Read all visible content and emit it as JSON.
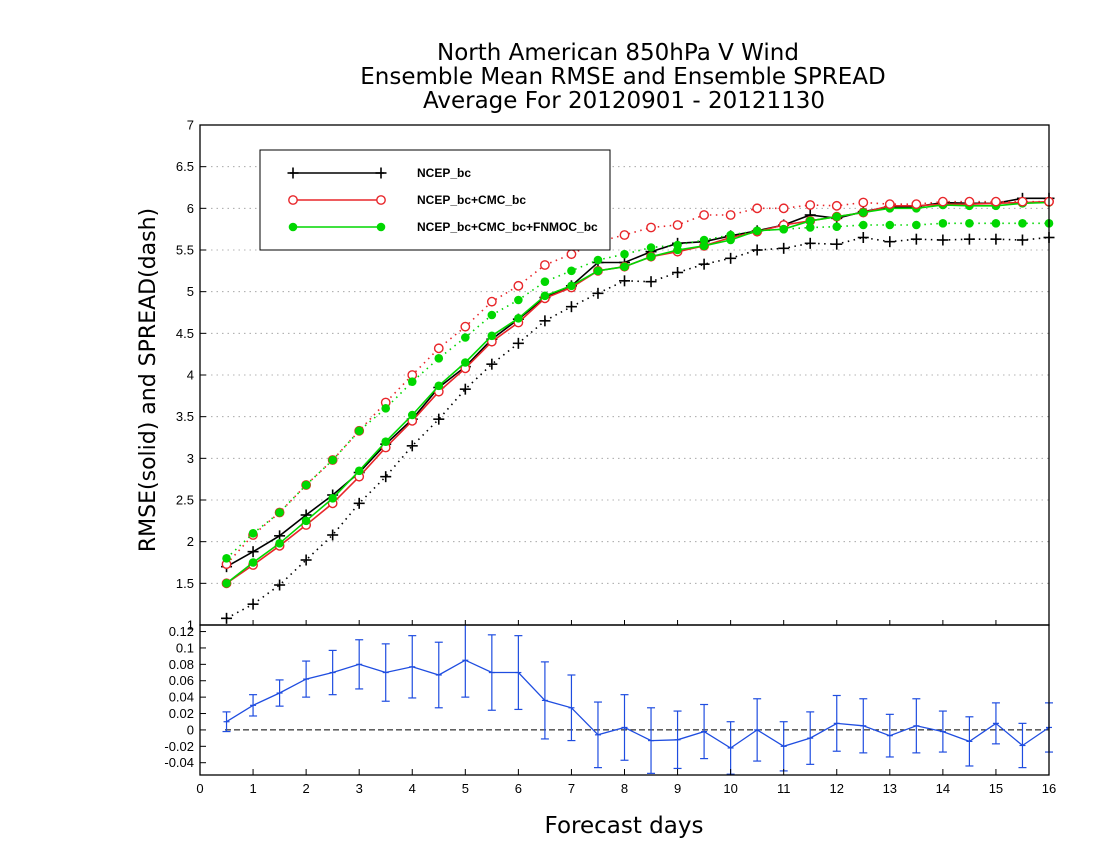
{
  "chart_data": {
    "title": [
      "North American 850hPa V Wind",
      "Ensemble Mean RMSE and Ensemble SPREAD",
      "Average For 20120901 - 20121130"
    ],
    "xlabel": "Forecast days",
    "ylabel": "RMSE(solid) and SPREAD(dash)",
    "colors": {
      "ncep": "#000000",
      "cmc": "#e8262a",
      "fnmoc": "#00d700",
      "diff": "#1f4de0"
    },
    "top": {
      "type": "line",
      "xlim": [
        0,
        16
      ],
      "ylim": [
        1,
        7
      ],
      "yticks": [
        "1",
        "1.5",
        "2",
        "2.5",
        "3",
        "3.5",
        "4",
        "4.5",
        "5",
        "5.5",
        "6",
        "6.5",
        "7"
      ],
      "grid": true,
      "legend_position": "top-left",
      "x": [
        0.5,
        1,
        1.5,
        2,
        2.5,
        3,
        3.5,
        4,
        4.5,
        5,
        5.5,
        6,
        6.5,
        7,
        7.5,
        8,
        8.5,
        9,
        9.5,
        10,
        10.5,
        11,
        11.5,
        12,
        12.5,
        13,
        13.5,
        14,
        14.5,
        15,
        15.5,
        16
      ],
      "series": [
        {
          "name": "NCEP_bc",
          "key": "ncep",
          "style": "solid",
          "marker": "plus",
          "values": [
            1.7,
            1.88,
            2.07,
            2.32,
            2.56,
            2.83,
            3.17,
            3.47,
            3.85,
            4.1,
            4.43,
            4.67,
            4.93,
            5.07,
            5.35,
            5.35,
            5.48,
            5.58,
            5.6,
            5.67,
            5.73,
            5.8,
            5.92,
            5.88,
            5.96,
            6.02,
            6.02,
            6.07,
            6.06,
            6.06,
            6.12,
            6.12
          ]
        },
        {
          "name": "NCEP_bc+CMC_bc",
          "key": "cmc",
          "style": "solid",
          "marker": "circle",
          "values": [
            1.5,
            1.72,
            1.95,
            2.2,
            2.46,
            2.78,
            3.13,
            3.45,
            3.8,
            4.08,
            4.4,
            4.63,
            4.92,
            5.05,
            5.25,
            5.3,
            5.42,
            5.48,
            5.55,
            5.65,
            5.72,
            5.8,
            5.85,
            5.9,
            5.95,
            6.03,
            6.03,
            6.05,
            6.05,
            6.06,
            6.07,
            6.08
          ]
        },
        {
          "name": "NCEP_bc+CMC_bc+FNMOC_bc",
          "key": "fnmoc",
          "style": "solid",
          "marker": "dot",
          "values": [
            1.5,
            1.75,
            1.98,
            2.25,
            2.52,
            2.85,
            3.2,
            3.52,
            3.87,
            4.15,
            4.47,
            4.68,
            4.95,
            5.07,
            5.25,
            5.3,
            5.42,
            5.5,
            5.55,
            5.62,
            5.73,
            5.75,
            5.85,
            5.9,
            5.95,
            6.0,
            6.0,
            6.04,
            6.03,
            6.03,
            6.06,
            6.07
          ]
        },
        {
          "name": "NCEP_bc",
          "key": "ncep",
          "style": "dotted",
          "marker": "plus",
          "values": [
            1.08,
            1.25,
            1.48,
            1.78,
            2.08,
            2.46,
            2.78,
            3.15,
            3.47,
            3.83,
            4.13,
            4.38,
            4.65,
            4.82,
            4.98,
            5.13,
            5.12,
            5.23,
            5.33,
            5.4,
            5.5,
            5.52,
            5.58,
            5.57,
            5.65,
            5.6,
            5.63,
            5.62,
            5.63,
            5.63,
            5.62,
            5.65
          ]
        },
        {
          "name": "NCEP_bc+CMC_bc",
          "key": "cmc",
          "style": "dotted",
          "marker": "circle",
          "values": [
            1.73,
            2.08,
            2.35,
            2.68,
            2.98,
            3.33,
            3.67,
            4.0,
            4.32,
            4.58,
            4.88,
            5.07,
            5.32,
            5.45,
            5.6,
            5.68,
            5.77,
            5.8,
            5.92,
            5.92,
            6.0,
            6.0,
            6.04,
            6.03,
            6.07,
            6.05,
            6.05,
            6.08,
            6.08,
            6.08,
            6.08,
            6.08
          ]
        },
        {
          "name": "NCEP_bc+CMC_bc+FNMOC_bc",
          "key": "fnmoc",
          "style": "dotted",
          "marker": "dot",
          "values": [
            1.8,
            2.1,
            2.35,
            2.68,
            2.98,
            3.33,
            3.6,
            3.92,
            4.2,
            4.45,
            4.72,
            4.9,
            5.12,
            5.25,
            5.38,
            5.45,
            5.53,
            5.56,
            5.62,
            5.68,
            5.73,
            5.75,
            5.77,
            5.78,
            5.8,
            5.8,
            5.8,
            5.82,
            5.82,
            5.82,
            5.82,
            5.82
          ]
        }
      ]
    },
    "bottom": {
      "type": "line",
      "xlim": [
        0,
        16
      ],
      "ylim": [
        -0.055,
        0.128
      ],
      "yticks": [
        "0.12",
        "0.1",
        "0.08",
        "0.06",
        "0.04",
        "0.02",
        "0",
        "-0.02",
        "-0.04"
      ],
      "xticks": [
        "0",
        "1",
        "2",
        "3",
        "4",
        "5",
        "6",
        "7",
        "8",
        "9",
        "10",
        "11",
        "12",
        "13",
        "14",
        "15",
        "16"
      ],
      "zero_line": "dashed",
      "x": [
        0.5,
        1,
        1.5,
        2,
        2.5,
        3,
        3.5,
        4,
        4.5,
        5,
        5.5,
        6,
        6.5,
        7,
        7.5,
        8,
        8.5,
        9,
        9.5,
        10,
        10.5,
        11,
        11.5,
        12,
        12.5,
        13,
        13.5,
        14,
        14.5,
        15,
        15.5,
        16
      ],
      "values": [
        0.01,
        0.03,
        0.045,
        0.062,
        0.07,
        0.08,
        0.07,
        0.077,
        0.067,
        0.085,
        0.07,
        0.07,
        0.036,
        0.027,
        -0.006,
        0.003,
        -0.013,
        -0.012,
        -0.002,
        -0.022,
        0,
        -0.02,
        -0.01,
        0.008,
        0.005,
        -0.007,
        0.005,
        -0.002,
        -0.014,
        0.008,
        -0.019,
        0.003
      ],
      "error_half_width": [
        0.012,
        0.013,
        0.016,
        0.022,
        0.027,
        0.03,
        0.035,
        0.038,
        0.04,
        0.045,
        0.046,
        0.045,
        0.047,
        0.04,
        0.04,
        0.04,
        0.04,
        0.035,
        0.033,
        0.032,
        0.038,
        0.03,
        0.032,
        0.034,
        0.033,
        0.026,
        0.033,
        0.025,
        0.03,
        0.025,
        0.027,
        0.03
      ]
    }
  }
}
